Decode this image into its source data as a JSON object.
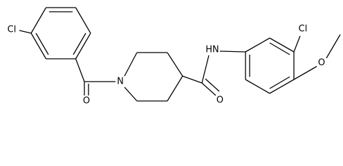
{
  "atoms": [
    {
      "label": "Cl"
    },
    {
      "label": "O"
    },
    {
      "label": "N"
    },
    {
      "label": "O"
    },
    {
      "label": "HN"
    },
    {
      "label": "Cl"
    },
    {
      "label": "O"
    }
  ]
}
